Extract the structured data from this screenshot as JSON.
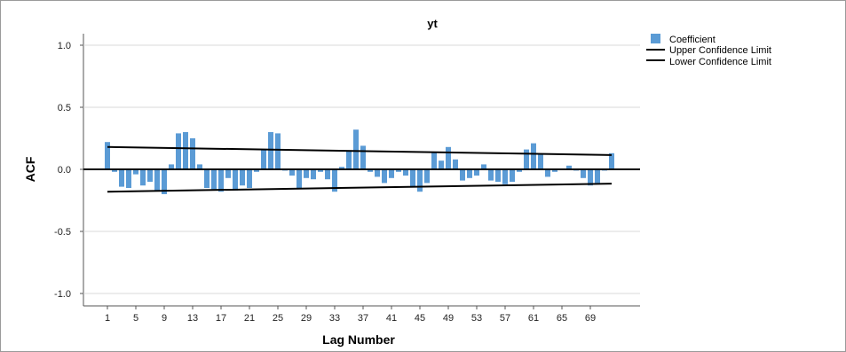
{
  "chart_data": {
    "type": "bar",
    "title": "yt",
    "xlabel": "Lag Number",
    "ylabel": "ACF",
    "ylim": [
      -1.1,
      1.1
    ],
    "y_ticks": [
      1.0,
      0.5,
      0.0,
      -0.5,
      -1.0
    ],
    "y_tick_labels": [
      "1.0",
      "0.5",
      "0.0",
      "-0.5",
      "-1.0"
    ],
    "x_tick_lags": [
      1,
      5,
      9,
      13,
      17,
      21,
      25,
      29,
      33,
      37,
      41,
      45,
      49,
      53,
      57,
      61,
      65,
      69
    ],
    "x_tick_labels": [
      "1",
      "5",
      "9",
      "13",
      "17",
      "21",
      "25",
      "29",
      "33",
      "37",
      "41",
      "45",
      "49",
      "53",
      "57",
      "61",
      "65",
      "69"
    ],
    "lags": [
      1,
      2,
      3,
      4,
      5,
      6,
      7,
      8,
      9,
      10,
      11,
      12,
      13,
      14,
      15,
      16,
      17,
      18,
      19,
      20,
      21,
      22,
      23,
      24,
      25,
      26,
      27,
      28,
      29,
      30,
      31,
      32,
      33,
      34,
      35,
      36,
      37,
      38,
      39,
      40,
      41,
      42,
      43,
      44,
      45,
      46,
      47,
      48,
      49,
      50,
      51,
      52,
      53,
      54,
      55,
      56,
      57,
      58,
      59,
      60,
      61,
      62,
      63,
      64,
      65,
      66,
      67,
      68,
      69,
      70,
      71,
      72
    ],
    "series": [
      {
        "name": "Coefficient",
        "color": "#5b9bd5",
        "values": [
          0.22,
          -0.02,
          -0.14,
          -0.15,
          -0.04,
          -0.13,
          -0.1,
          -0.17,
          -0.2,
          0.04,
          0.29,
          0.3,
          0.25,
          0.04,
          -0.15,
          -0.16,
          -0.18,
          -0.07,
          -0.17,
          -0.13,
          -0.15,
          -0.02,
          0.16,
          0.3,
          0.29,
          -0.01,
          -0.05,
          -0.16,
          -0.07,
          -0.08,
          -0.02,
          -0.08,
          -0.18,
          0.02,
          0.15,
          0.32,
          0.19,
          -0.02,
          -0.06,
          -0.11,
          -0.07,
          -0.02,
          -0.05,
          -0.14,
          -0.18,
          -0.11,
          0.14,
          0.07,
          0.18,
          0.08,
          -0.09,
          -0.07,
          -0.05,
          0.04,
          -0.09,
          -0.1,
          -0.12,
          -0.1,
          -0.02,
          0.16,
          0.21,
          0.12,
          -0.06,
          -0.02,
          0.0,
          0.03,
          -0.01,
          -0.07,
          -0.13,
          -0.11,
          -0.01,
          0.13
        ]
      },
      {
        "name": "Upper Confidence Limit",
        "color": "#000000",
        "type": "line",
        "start": {
          "lag": 1,
          "value": 0.18
        },
        "end": {
          "lag": 72,
          "value": 0.115
        }
      },
      {
        "name": "Lower Confidence Limit",
        "color": "#000000",
        "type": "line",
        "start": {
          "lag": 1,
          "value": -0.18
        },
        "end": {
          "lag": 72,
          "value": -0.115
        }
      }
    ],
    "legend": {
      "placement": "top-right",
      "items": [
        {
          "label": "Coefficient",
          "kind": "bar",
          "color": "#5b9bd5"
        },
        {
          "label": "Upper Confidence Limit",
          "kind": "line",
          "color": "#000000"
        },
        {
          "label": "Lower Confidence Limit",
          "kind": "line",
          "color": "#000000"
        }
      ]
    },
    "grid": true,
    "colors": {
      "bar": "#5b9bd5",
      "zero_line": "#000000",
      "gridline": "#d9d9d9",
      "axis": "#555555"
    }
  }
}
